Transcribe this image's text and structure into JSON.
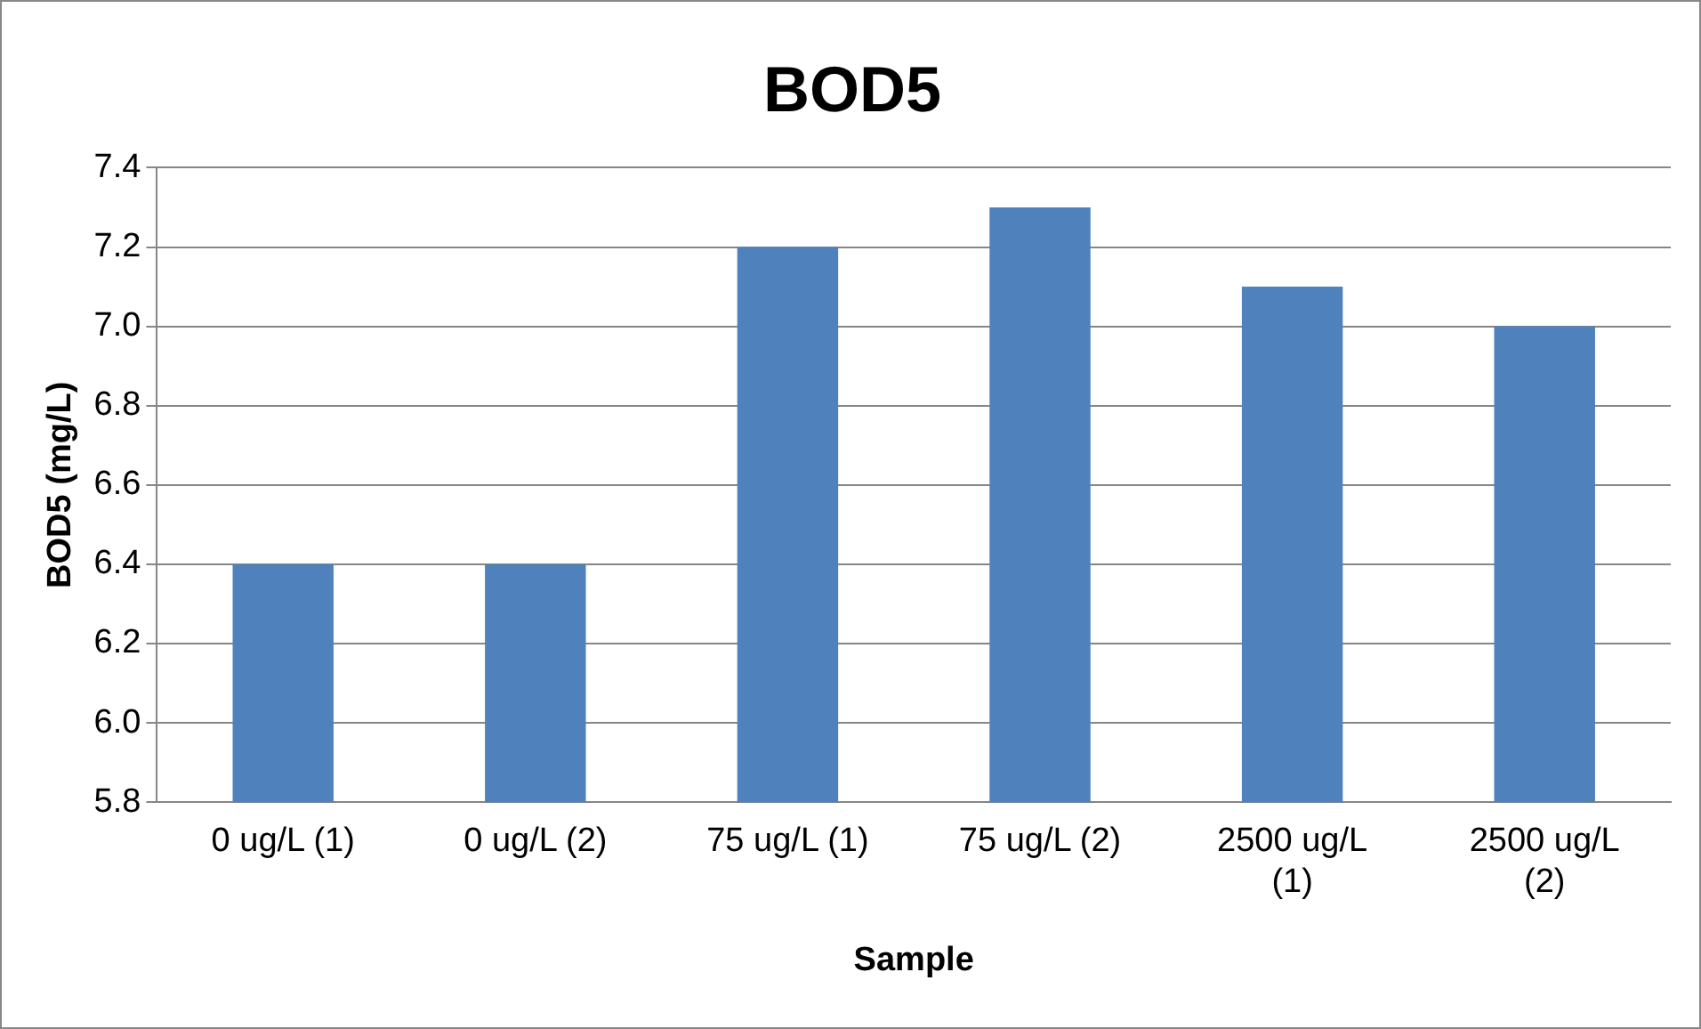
{
  "chart_data": {
    "type": "bar",
    "title": "BOD5",
    "xlabel": "Sample",
    "ylabel": "BOD5 (mg/L)",
    "categories": [
      "0 ug/L (1)",
      "0 ug/L (2)",
      "75 ug/L (1)",
      "75 ug/L (2)",
      "2500 ug/L (1)",
      "2500 ug/L (2)"
    ],
    "values": [
      6.4,
      6.4,
      7.2,
      7.3,
      7.1,
      7.0
    ],
    "color": "#4f81bd",
    "ylim": [
      5.8,
      7.4
    ],
    "yticks": [
      5.8,
      {
        "value": 6.0,
        "label": "6.0"
      },
      6.2,
      6.4,
      6.6,
      6.8,
      {
        "value": 7.0,
        "label": "7.0"
      },
      7.2,
      7.4
    ],
    "grid": "y",
    "legend": false
  }
}
